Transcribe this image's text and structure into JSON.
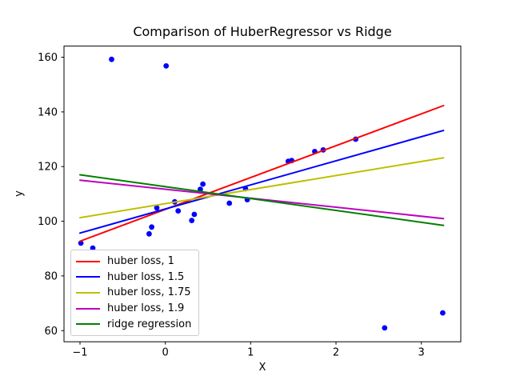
{
  "chart_data": {
    "type": "scatter",
    "title": "Comparison of HuberRegressor vs Ridge",
    "xlabel": "X",
    "ylabel": "y",
    "xlim": [
      -1.1875,
      3.4622
    ],
    "ylim": [
      55.93,
      164.07
    ],
    "grid": false,
    "x_ticks": [
      -1,
      0,
      1,
      2,
      3
    ],
    "x_tick_labels": [
      "−1",
      "0",
      "1",
      "2",
      "3"
    ],
    "y_ticks": [
      60,
      80,
      100,
      120,
      140,
      160
    ],
    "y_tick_labels": [
      "60",
      "80",
      "100",
      "120",
      "140",
      "160"
    ],
    "scatter": {
      "name": "data points",
      "color": "#0000ff",
      "marker_radius": 3.4,
      "points": [
        [
          -0.99,
          92.0
        ],
        [
          -0.85,
          90.2
        ],
        [
          -0.63,
          159.2
        ],
        [
          0.01,
          156.8
        ],
        [
          -0.19,
          95.4
        ],
        [
          -0.16,
          97.9
        ],
        [
          -0.1,
          104.9
        ],
        [
          0.11,
          107.1
        ],
        [
          0.15,
          103.8
        ],
        [
          0.31,
          100.3
        ],
        [
          0.34,
          102.5
        ],
        [
          0.41,
          111.7
        ],
        [
          0.44,
          113.6
        ],
        [
          0.75,
          106.6
        ],
        [
          0.94,
          111.9
        ],
        [
          0.96,
          107.9
        ],
        [
          1.44,
          121.9
        ],
        [
          1.48,
          122.2
        ],
        [
          1.75,
          125.5
        ],
        [
          1.85,
          126.1
        ],
        [
          2.23,
          130.0
        ],
        [
          2.57,
          61.0
        ],
        [
          3.25,
          66.5
        ]
      ]
    },
    "series": [
      {
        "name": "huber loss, 1",
        "color": "#ff0000",
        "x": [
          -1.0,
          3.26
        ],
        "y": [
          92.7,
          142.3
        ]
      },
      {
        "name": "huber loss, 1.5",
        "color": "#0000ff",
        "x": [
          -1.0,
          3.26
        ],
        "y": [
          95.7,
          133.2
        ]
      },
      {
        "name": "huber loss, 1.75",
        "color": "#bfbf00",
        "x": [
          -1.0,
          3.26
        ],
        "y": [
          101.3,
          123.2
        ]
      },
      {
        "name": "huber loss, 1.9",
        "color": "#bf00bf",
        "x": [
          -1.0,
          3.26
        ],
        "y": [
          115.0,
          101.0
        ]
      },
      {
        "name": "ridge regression",
        "color": "#008000",
        "x": [
          -1.0,
          3.26
        ],
        "y": [
          117.0,
          98.5
        ]
      }
    ],
    "legend": {
      "position": "lower left",
      "edge_color": "#cccccc"
    },
    "axes_color": "#000000",
    "background": "#ffffff"
  }
}
